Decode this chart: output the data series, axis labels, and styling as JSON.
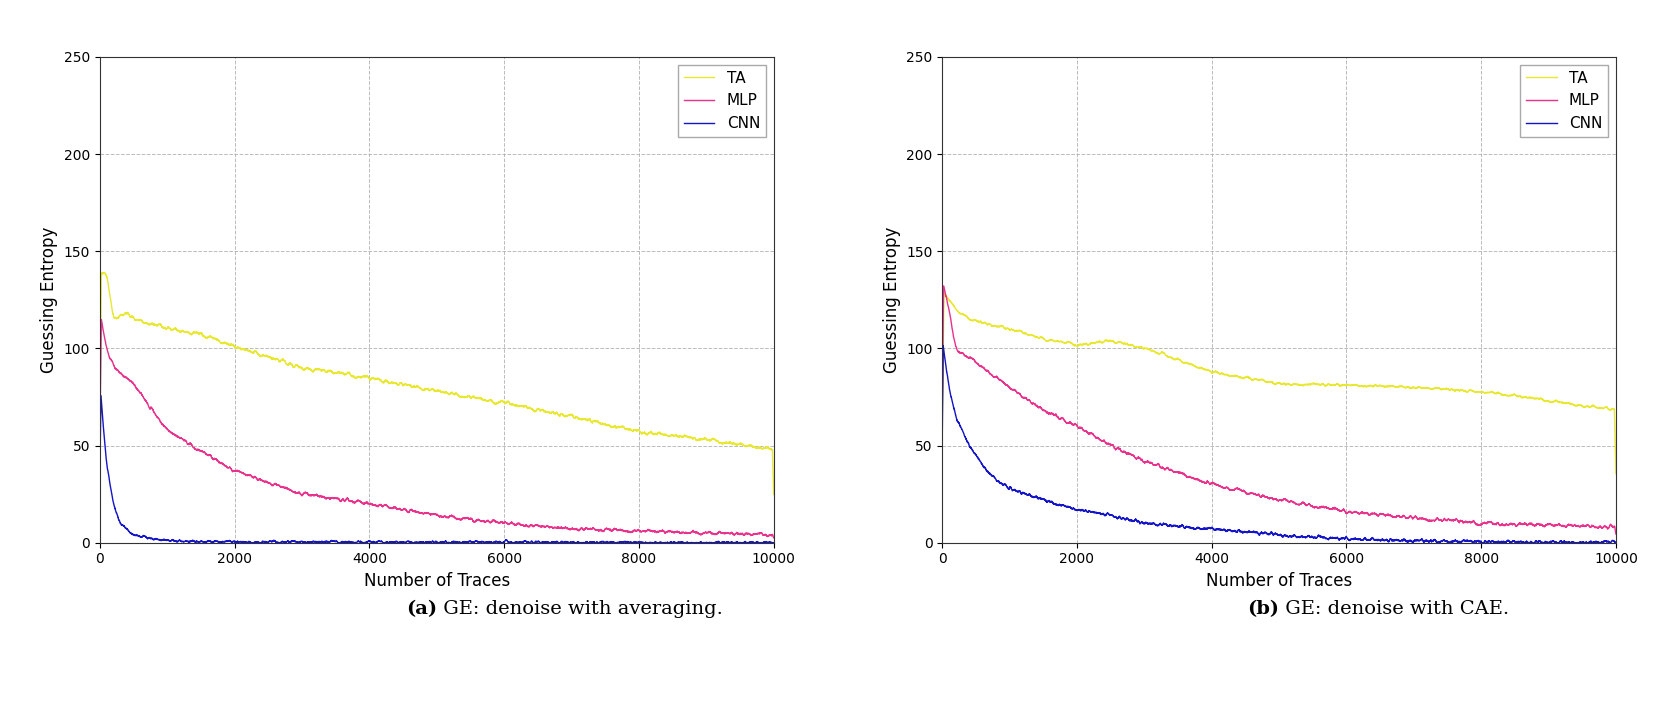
{
  "title_a": "(a) GE: denoise with averaging.",
  "title_b": "(b) GE: denoise with CAE.",
  "xlabel": "Number of Traces",
  "ylabel": "Guessing Entropy",
  "xlim": [
    0,
    10000
  ],
  "ylim": [
    0,
    250
  ],
  "yticks": [
    0,
    50,
    100,
    150,
    200,
    250
  ],
  "xticks": [
    0,
    2000,
    4000,
    6000,
    8000,
    10000
  ],
  "legend_labels": [
    "TA",
    "MLP",
    "CNN"
  ],
  "colors": {
    "TA": "#e8e832",
    "MLP": "#e8328c",
    "CNN": "#1414c8"
  },
  "linewidth": 1.0,
  "grid_color": "#aaaaaa",
  "grid_linestyle": "--",
  "background_color": "#ffffff"
}
